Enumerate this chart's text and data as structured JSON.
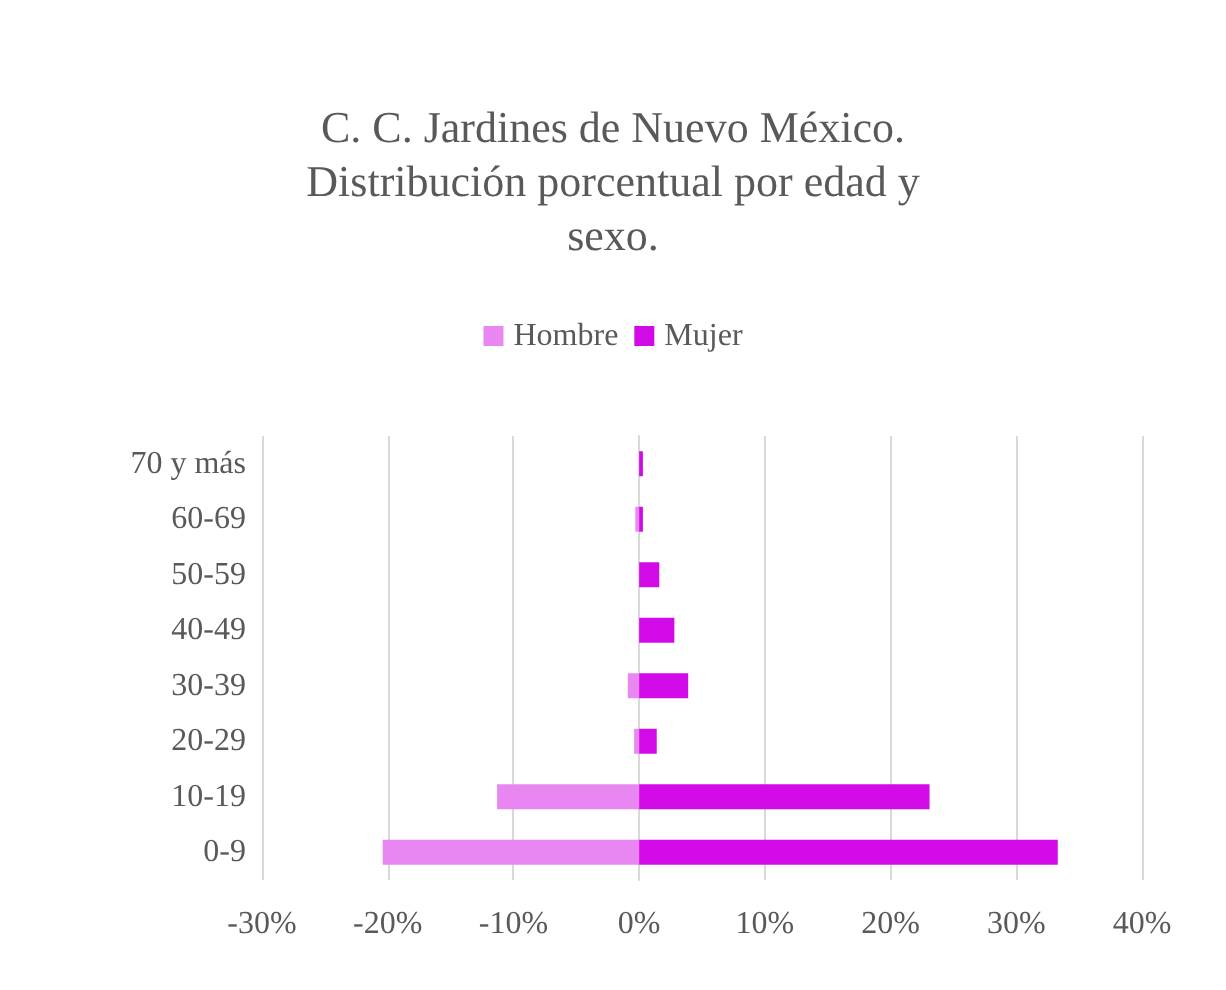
{
  "chart_data": {
    "type": "bar",
    "title": "C. C. Jardines de Nuevo México.\nDistribución porcentual por edad y\nsexo.",
    "orientation": "horizontal",
    "stacked": true,
    "categories": [
      "70 y más",
      "60-69",
      "50-59",
      "40-49",
      "30-39",
      "20-29",
      "10-19",
      "0-9"
    ],
    "series": [
      {
        "name": "Hombre",
        "color": "#e987f2",
        "values": [
          0,
          -0.3,
          0,
          0,
          -0.9,
          -0.4,
          -11.3,
          -20.4
        ]
      },
      {
        "name": "Mujer",
        "color": "#d20ae8",
        "values": [
          0.3,
          0.3,
          1.6,
          2.8,
          3.9,
          1.4,
          23.1,
          33.3
        ]
      }
    ],
    "xlim": [
      -30,
      40
    ],
    "xticks": [
      {
        "value": -30,
        "label": "-30%"
      },
      {
        "value": -20,
        "label": "-20%"
      },
      {
        "value": -10,
        "label": "-10%"
      },
      {
        "value": 0,
        "label": "0%"
      },
      {
        "value": 10,
        "label": "10%"
      },
      {
        "value": 20,
        "label": "20%"
      },
      {
        "value": 30,
        "label": "30%"
      },
      {
        "value": 40,
        "label": "40%"
      }
    ],
    "grid": "x",
    "legend": "top"
  }
}
